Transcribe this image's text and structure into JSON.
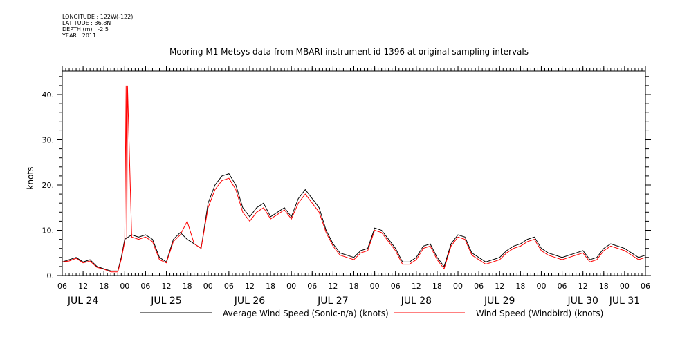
{
  "meta": {
    "longitude": "LONGITUDE : 122W(-122)",
    "latitude": "LATITUDE : 36.8N",
    "depth": "DEPTH (m) : -2.5",
    "year": "YEAR : 2011"
  },
  "chart_data": {
    "type": "line",
    "title": "Mooring M1 Metsys data from MBARI instrument id 1396 at original sampling intervals",
    "ylabel": "knots",
    "xlabel": "",
    "ylim": [
      0,
      45
    ],
    "yticks": [
      0,
      10,
      20,
      30,
      40
    ],
    "ytick_labels": [
      "0.",
      "10.",
      "20.",
      "30.",
      "40."
    ],
    "xlim_hours": [
      0,
      168
    ],
    "hour_ticks": [
      "06",
      "12",
      "18",
      "00",
      "06",
      "12",
      "18",
      "00",
      "06",
      "12",
      "18",
      "00",
      "06",
      "12",
      "18",
      "00",
      "06",
      "12",
      "18",
      "00",
      "06",
      "12",
      "18",
      "00",
      "06",
      "12",
      "18",
      "00",
      "06"
    ],
    "date_labels": [
      {
        "label": "JUL 24",
        "hour": 6
      },
      {
        "label": "JUL 25",
        "hour": 30
      },
      {
        "label": "JUL 26",
        "hour": 54
      },
      {
        "label": "JUL 27",
        "hour": 78
      },
      {
        "label": "JUL 28",
        "hour": 102
      },
      {
        "label": "JUL 29",
        "hour": 126
      },
      {
        "label": "JUL 30",
        "hour": 150
      },
      {
        "label": "JUL 31",
        "hour": 168
      }
    ],
    "grid": false,
    "legend_position": "bottom",
    "series": [
      {
        "name": "Average Wind Speed (Sonic-n/a) (knots)",
        "color": "#000000",
        "x": [
          0,
          2,
          4,
          6,
          8,
          10,
          12,
          14,
          16,
          17,
          18,
          20,
          22,
          24,
          26,
          28,
          30,
          32,
          34,
          36,
          38,
          40,
          42,
          44,
          46,
          48,
          50,
          52,
          54,
          56,
          58,
          60,
          62,
          64,
          66,
          68,
          70,
          72,
          74,
          76,
          78,
          80,
          82,
          84,
          86,
          88,
          90,
          92,
          94,
          96,
          98,
          100,
          102,
          104,
          106,
          108,
          110,
          112,
          114,
          116,
          118,
          120,
          122,
          124,
          126,
          128,
          130,
          132,
          134,
          136,
          138,
          140,
          142,
          144,
          146,
          148,
          150,
          152,
          154,
          156,
          158,
          160,
          162,
          164,
          166,
          168
        ],
        "y": [
          3,
          3.5,
          4,
          3,
          3.5,
          2,
          1.5,
          1,
          1,
          4,
          8,
          9,
          8.5,
          9,
          8,
          4,
          3,
          8,
          9.5,
          8,
          7,
          6,
          16,
          20,
          22,
          22.5,
          20,
          15,
          13,
          15,
          16,
          13,
          14,
          15,
          13,
          17,
          19,
          17,
          15,
          10,
          7,
          5,
          4.5,
          4,
          5.5,
          6,
          10.5,
          10,
          8,
          6,
          3,
          3,
          4,
          6.5,
          7,
          4,
          2,
          7,
          9,
          8.5,
          5,
          4,
          3,
          3.5,
          4,
          5.5,
          6.5,
          7,
          8,
          8.5,
          6,
          5,
          4.5,
          4,
          4.5,
          5,
          5.5,
          3.5,
          4,
          6,
          7,
          6.5,
          6,
          5,
          4,
          4.5
        ]
      },
      {
        "name": "Wind Speed (Windbird) (knots)",
        "color": "#ff0000",
        "x": [
          0,
          2,
          4,
          6,
          8,
          10,
          12,
          14,
          16,
          17,
          18,
          18.4,
          18.6,
          18.8,
          20,
          22,
          24,
          26,
          28,
          30,
          32,
          34,
          36,
          38,
          40,
          42,
          44,
          46,
          48,
          50,
          52,
          54,
          56,
          58,
          60,
          62,
          64,
          66,
          68,
          70,
          72,
          74,
          76,
          78,
          80,
          82,
          84,
          86,
          88,
          90,
          92,
          94,
          96,
          98,
          100,
          102,
          104,
          106,
          108,
          110,
          112,
          114,
          116,
          118,
          120,
          122,
          124,
          126,
          128,
          130,
          132,
          134,
          136,
          138,
          140,
          142,
          144,
          146,
          148,
          150,
          152,
          154,
          156,
          158,
          160,
          162,
          164,
          166,
          168
        ],
        "y": [
          3,
          3.2,
          3.8,
          2.8,
          3.2,
          1.8,
          1.4,
          0.8,
          0.8,
          3.6,
          7.5,
          42,
          8,
          42,
          8.5,
          8,
          8.5,
          7.5,
          3.5,
          2.8,
          7.5,
          9,
          12,
          7,
          6,
          15,
          19,
          21,
          21.5,
          19,
          14,
          12,
          14,
          15,
          12.5,
          13.5,
          14.5,
          12.5,
          16,
          18,
          16,
          14,
          9.5,
          6.5,
          4.5,
          4,
          3.5,
          5,
          5.5,
          10,
          9.5,
          7.5,
          5.5,
          2.5,
          2.5,
          3.5,
          6,
          6.5,
          3.5,
          1.5,
          6.5,
          8.5,
          8,
          4.5,
          3.5,
          2.5,
          3,
          3.5,
          5,
          6,
          6.5,
          7.5,
          8,
          5.5,
          4.5,
          4,
          3.5,
          4,
          4.5,
          5,
          3,
          3.5,
          5.5,
          6.5,
          6,
          5.5,
          4.5,
          3.5,
          4
        ]
      }
    ]
  }
}
